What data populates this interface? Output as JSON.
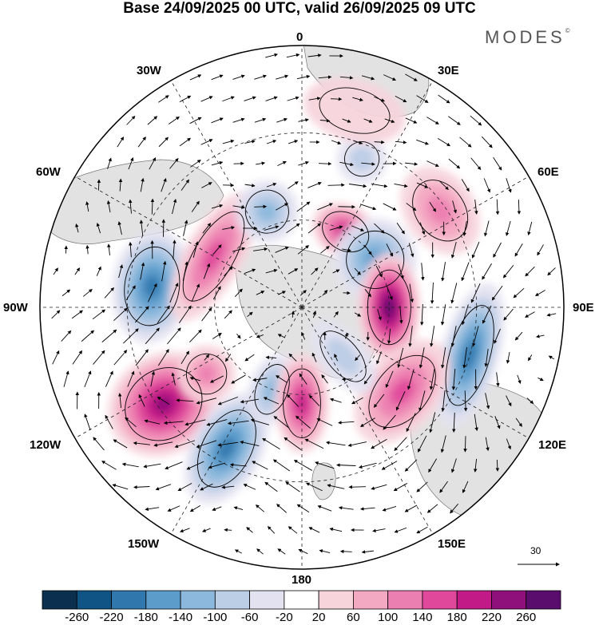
{
  "title": "Base 24/09/2025 00 UTC, valid 26/09/2025 09 UTC",
  "brand": "MODES",
  "brand_mark": "©",
  "longitude_labels": {
    "top": "0",
    "top_left": "30W",
    "top_right": "30E",
    "upper_left": "60W",
    "upper_right": "60E",
    "left": "90W",
    "right": "90E",
    "lower_left": "120W",
    "lower_right": "120E",
    "bottom_left": "150W",
    "bottom_right": "150E",
    "bottom": "180"
  },
  "reference_vector": "30",
  "colorbar": {
    "colors": [
      "#0b2f4f",
      "#0f5484",
      "#2f77ad",
      "#5c9ccb",
      "#8bb8dc",
      "#bccde6",
      "#e3e2f0",
      "#ffffff",
      "#f7d4dc",
      "#f4a9c2",
      "#ec7fb1",
      "#e0489b",
      "#c21a86",
      "#8f0f7b",
      "#5a0d6d"
    ],
    "labels": [
      "-260",
      "-220",
      "-180",
      "-140",
      "-100",
      "-60",
      "-20",
      "20",
      "60",
      "100",
      "140",
      "180",
      "220",
      "260"
    ]
  },
  "anomalies": [
    {
      "lon": -82,
      "colat": 52,
      "value": -230,
      "sx": 55,
      "sy": 38
    },
    {
      "lon": -125,
      "colat": 58,
      "value": 250,
      "sx": 48,
      "sy": 56
    },
    {
      "lon": -125,
      "colat": 40,
      "value": 150,
      "sx": 28,
      "sy": 28
    },
    {
      "lon": -152,
      "colat": 55,
      "value": -230,
      "sx": 34,
      "sy": 58
    },
    {
      "lon": -160,
      "colat": 30,
      "value": -130,
      "sx": 22,
      "sy": 36
    },
    {
      "lon": 180,
      "colat": 33,
      "value": 200,
      "sx": 26,
      "sy": 48
    },
    {
      "lon": -60,
      "colat": 35,
      "value": 190,
      "sx": 70,
      "sy": 28
    },
    {
      "lon": -20,
      "colat": 35,
      "value": -150,
      "sx": 30,
      "sy": 30
    },
    {
      "lon": 30,
      "colat": 30,
      "value": 200,
      "sx": 34,
      "sy": 26
    },
    {
      "lon": 57,
      "colat": 30,
      "value": -190,
      "sx": 40,
      "sy": 40
    },
    {
      "lon": 90,
      "colat": 30,
      "value": 290,
      "sx": 52,
      "sy": 30
    },
    {
      "lon": 106,
      "colat": 60,
      "value": -230,
      "sx": 72,
      "sy": 28
    },
    {
      "lon": 130,
      "colat": 45,
      "value": 160,
      "sx": 58,
      "sy": 36
    },
    {
      "lon": 55,
      "colat": 58,
      "value": 130,
      "sx": 46,
      "sy": 34
    },
    {
      "lon": 22,
      "colat": 55,
      "value": -80,
      "sx": 24,
      "sy": 24
    },
    {
      "lon": 15,
      "colat": 70,
      "value": 60,
      "sx": 50,
      "sy": 30
    },
    {
      "lon": 140,
      "colat": 22,
      "value": -80,
      "sx": 22,
      "sy": 42
    }
  ]
}
